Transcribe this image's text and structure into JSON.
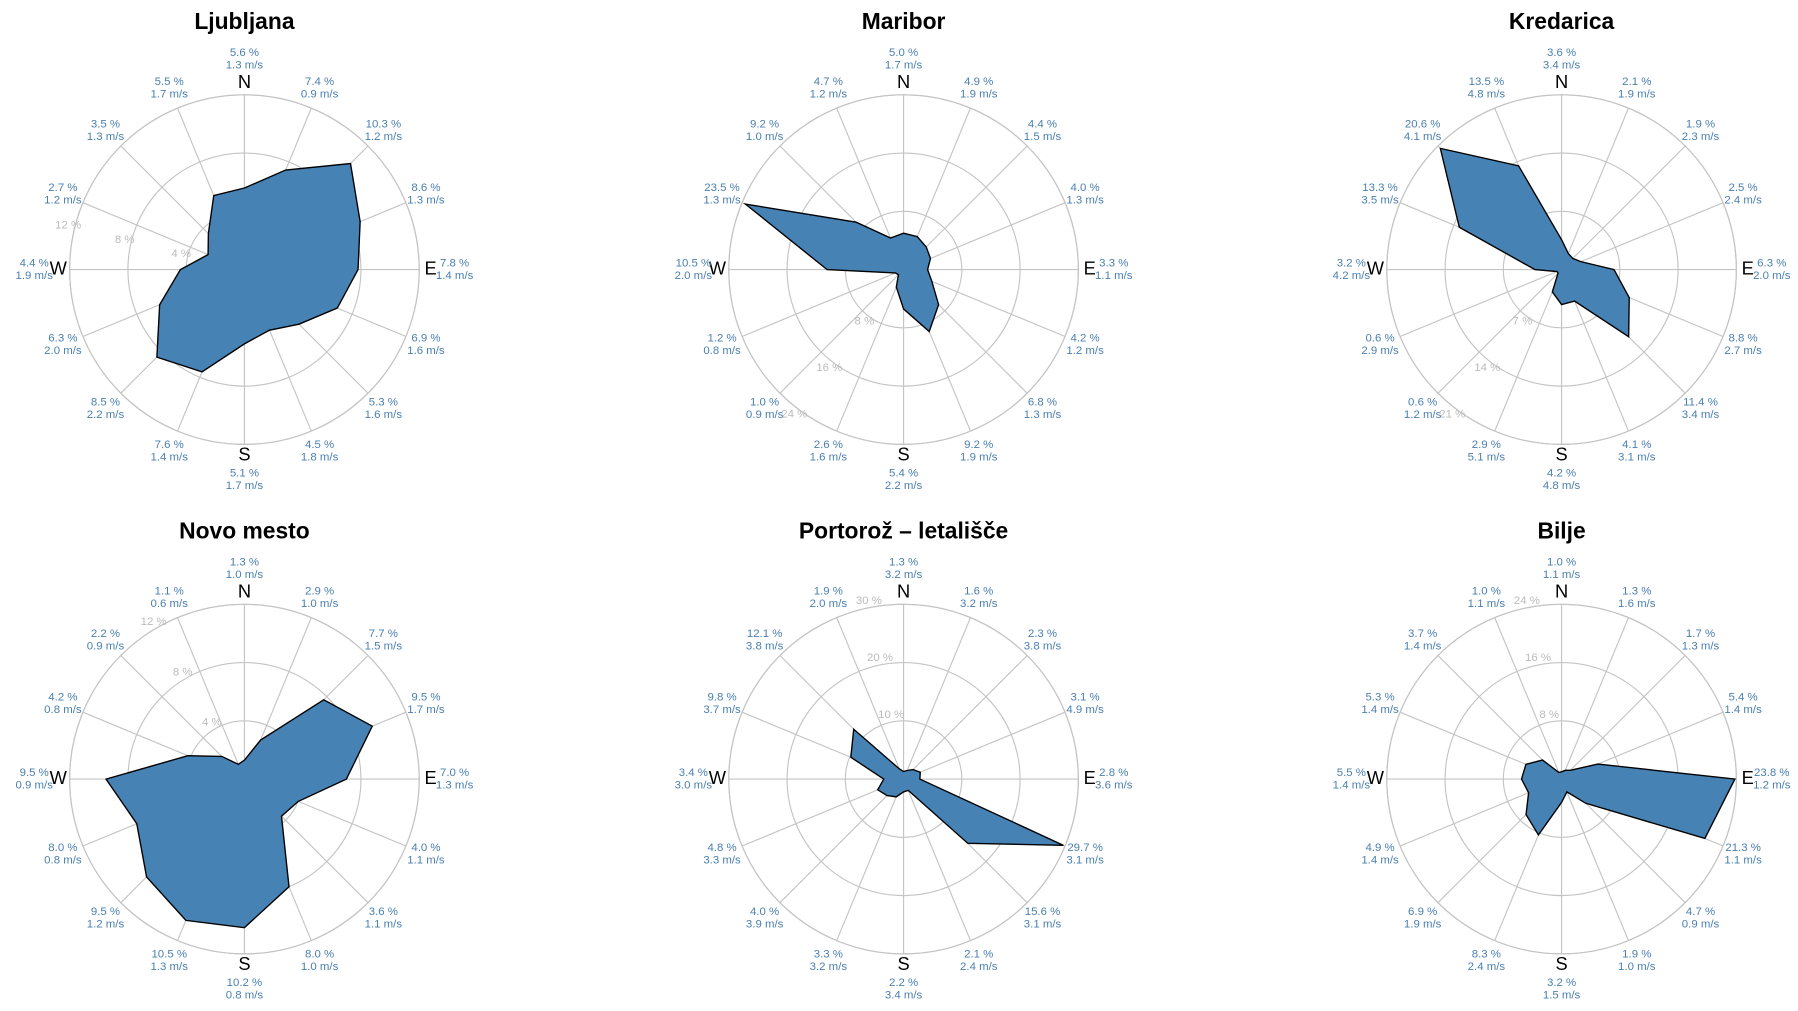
{
  "chart_data": [
    {
      "type": "radar",
      "title": "Ljubljana",
      "categories": [
        "N",
        null,
        null,
        null,
        "E",
        null,
        null,
        null,
        "S",
        null,
        null,
        null,
        "W",
        null,
        null,
        null
      ],
      "values": [
        5.6,
        7.4,
        10.3,
        8.6,
        7.8,
        6.9,
        5.3,
        4.5,
        5.1,
        7.6,
        8.5,
        6.3,
        4.4,
        2.7,
        3.5,
        5.5
      ],
      "value_labels": [
        "5.6 %",
        "7.4 %",
        "10.3 %",
        "8.6 %",
        "7.8 %",
        "6.9 %",
        "5.3 %",
        "4.5 %",
        "5.1 %",
        "7.6 %",
        "8.5 %",
        "6.3 %",
        "4.4 %",
        "2.7 %",
        "3.5 %",
        "5.5 %"
      ],
      "speed_labels": [
        "1.3 m/s",
        "0.9 m/s",
        "1.2 m/s",
        "1.3 m/s",
        "1.4 m/s",
        "1.6 m/s",
        "1.6 m/s",
        "1.8 m/s",
        "1.7 m/s",
        "1.4 m/s",
        "2.2 m/s",
        "2.0 m/s",
        "1.9 m/s",
        "1.2 m/s",
        "1.3 m/s",
        "1.7 m/s"
      ],
      "ylim": [
        0,
        12
      ],
      "yticks": [
        {
          "value": 4,
          "label": "4 %"
        },
        {
          "value": 8,
          "label": "8 %"
        },
        {
          "value": 12,
          "label": "12 %"
        }
      ],
      "color": "#4682b4"
    },
    {
      "type": "radar",
      "title": "Maribor",
      "categories": [
        "N",
        null,
        null,
        null,
        "E",
        null,
        null,
        null,
        "S",
        null,
        null,
        null,
        "W",
        null,
        null,
        null
      ],
      "values": [
        5.0,
        4.9,
        4.4,
        4.0,
        3.3,
        4.2,
        6.8,
        9.2,
        5.4,
        2.6,
        1.0,
        1.2,
        10.5,
        23.5,
        9.2,
        4.7
      ],
      "value_labels": [
        "5.0 %",
        "4.9 %",
        "4.4 %",
        "4.0 %",
        "3.3 %",
        "4.2 %",
        "6.8 %",
        "9.2 %",
        "5.4 %",
        "2.6 %",
        "1.0 %",
        "1.2 %",
        "10.5 %",
        "23.5 %",
        "9.2 %",
        "4.7 %"
      ],
      "speed_labels": [
        "1.7 m/s",
        "1.9 m/s",
        "1.5 m/s",
        "1.3 m/s",
        "1.1 m/s",
        "1.2 m/s",
        "1.3 m/s",
        "1.9 m/s",
        "2.2 m/s",
        "1.6 m/s",
        "0.9 m/s",
        "0.8 m/s",
        "2.0 m/s",
        "1.3 m/s",
        "1.0 m/s",
        "1.2 m/s"
      ],
      "ylim": [
        0,
        24
      ],
      "yticks": [
        {
          "value": 8,
          "label": "8 %"
        },
        {
          "value": 16,
          "label": "16 %"
        },
        {
          "value": 24,
          "label": "24 %"
        }
      ],
      "color": "#4682b4"
    },
    {
      "type": "radar",
      "title": "Kredarica",
      "categories": [
        "N",
        null,
        null,
        null,
        "E",
        null,
        null,
        null,
        "S",
        null,
        null,
        null,
        "W",
        null,
        null,
        null
      ],
      "values": [
        3.6,
        2.1,
        1.9,
        2.5,
        6.3,
        8.8,
        11.4,
        4.1,
        4.2,
        2.9,
        0.6,
        0.6,
        3.2,
        13.3,
        20.6,
        13.5
      ],
      "value_labels": [
        "3.6 %",
        "2.1 %",
        "1.9 %",
        "2.5 %",
        "6.3 %",
        "8.8 %",
        "11.4 %",
        "4.1 %",
        "4.2 %",
        "2.9 %",
        "0.6 %",
        "0.6 %",
        "3.2 %",
        "13.3 %",
        "20.6 %",
        "13.5 %"
      ],
      "speed_labels": [
        "3.4 m/s",
        "1.9 m/s",
        "2.3 m/s",
        "2.4 m/s",
        "2.0 m/s",
        "2.7 m/s",
        "3.4 m/s",
        "3.1 m/s",
        "4.8 m/s",
        "5.1 m/s",
        "1.2 m/s",
        "2.9 m/s",
        "4.2 m/s",
        "3.5 m/s",
        "4.1 m/s",
        "4.8 m/s"
      ],
      "ylim": [
        0,
        21
      ],
      "yticks": [
        {
          "value": 7,
          "label": "7 %"
        },
        {
          "value": 14,
          "label": "14 %"
        },
        {
          "value": 21,
          "label": "21 %"
        }
      ],
      "color": "#4682b4"
    },
    {
      "type": "radar",
      "title": "Novo mesto",
      "categories": [
        "N",
        null,
        null,
        null,
        "E",
        null,
        null,
        null,
        "S",
        null,
        null,
        null,
        "W",
        null,
        null,
        null
      ],
      "values": [
        1.3,
        2.9,
        7.7,
        9.5,
        7.0,
        4.0,
        3.6,
        8.0,
        10.2,
        10.5,
        9.5,
        8.0,
        9.5,
        4.2,
        2.2,
        1.1
      ],
      "value_labels": [
        "1.3 %",
        "2.9 %",
        "7.7 %",
        "9.5 %",
        "7.0 %",
        "4.0 %",
        "3.6 %",
        "8.0 %",
        "10.2 %",
        "10.5 %",
        "9.5 %",
        "8.0 %",
        "9.5 %",
        "4.2 %",
        "2.2 %",
        "1.1 %"
      ],
      "speed_labels": [
        "1.0 m/s",
        "1.0 m/s",
        "1.5 m/s",
        "1.7 m/s",
        "1.3 m/s",
        "1.1 m/s",
        "1.1 m/s",
        "1.0 m/s",
        "0.8 m/s",
        "1.3 m/s",
        "1.2 m/s",
        "0.8 m/s",
        "0.9 m/s",
        "0.8 m/s",
        "0.9 m/s",
        "0.6 m/s"
      ],
      "ylim": [
        0,
        12
      ],
      "yticks": [
        {
          "value": 4,
          "label": "4 %"
        },
        {
          "value": 8,
          "label": "8 %"
        },
        {
          "value": 12,
          "label": "12 %"
        }
      ],
      "color": "#4682b4"
    },
    {
      "type": "radar",
      "title": "Portorož – letališče",
      "categories": [
        "N",
        null,
        null,
        null,
        "E",
        null,
        null,
        null,
        "S",
        null,
        null,
        null,
        "W",
        null,
        null,
        null
      ],
      "values": [
        1.3,
        1.6,
        2.3,
        3.1,
        2.8,
        29.7,
        15.6,
        2.1,
        2.2,
        3.3,
        4.0,
        4.8,
        3.4,
        9.8,
        12.1,
        1.9
      ],
      "value_labels": [
        "1.3 %",
        "1.6 %",
        "2.3 %",
        "3.1 %",
        "2.8 %",
        "29.7 %",
        "15.6 %",
        "2.1 %",
        "2.2 %",
        "3.3 %",
        "4.0 %",
        "4.8 %",
        "3.4 %",
        "9.8 %",
        "12.1 %",
        "1.9 %"
      ],
      "speed_labels": [
        "3.2 m/s",
        "3.2 m/s",
        "3.8 m/s",
        "4.9 m/s",
        "3.6 m/s",
        "3.1 m/s",
        "3.1 m/s",
        "2.4 m/s",
        "3.4 m/s",
        "3.2 m/s",
        "3.9 m/s",
        "3.3 m/s",
        "3.0 m/s",
        "3.7 m/s",
        "3.8 m/s",
        "2.0 m/s"
      ],
      "ylim": [
        0,
        30
      ],
      "yticks": [
        {
          "value": 10,
          "label": "10 %"
        },
        {
          "value": 20,
          "label": "20 %"
        },
        {
          "value": 30,
          "label": "30 %"
        }
      ],
      "color": "#4682b4"
    },
    {
      "type": "radar",
      "title": "Bilje",
      "categories": [
        "N",
        null,
        null,
        null,
        "E",
        null,
        null,
        null,
        "S",
        null,
        null,
        null,
        "W",
        null,
        null,
        null
      ],
      "values": [
        1.0,
        1.3,
        1.7,
        5.4,
        23.8,
        21.3,
        4.7,
        1.9,
        3.2,
        8.3,
        6.9,
        4.9,
        5.5,
        5.3,
        3.7,
        1.0
      ],
      "value_labels": [
        "1.0 %",
        "1.3 %",
        "1.7 %",
        "5.4 %",
        "23.8 %",
        "21.3 %",
        "4.7 %",
        "1.9 %",
        "3.2 %",
        "8.3 %",
        "6.9 %",
        "4.9 %",
        "5.5 %",
        "5.3 %",
        "3.7 %",
        "1.0 %"
      ],
      "speed_labels": [
        "1.1 m/s",
        "1.6 m/s",
        "1.3 m/s",
        "1.4 m/s",
        "1.2 m/s",
        "1.1 m/s",
        "0.9 m/s",
        "1.0 m/s",
        "1.5 m/s",
        "2.4 m/s",
        "1.9 m/s",
        "1.4 m/s",
        "1.4 m/s",
        "1.4 m/s",
        "1.4 m/s",
        "1.1 m/s"
      ],
      "ylim": [
        0,
        24
      ],
      "yticks": [
        {
          "value": 8,
          "label": "8 %"
        },
        {
          "value": 16,
          "label": "16 %"
        },
        {
          "value": 24,
          "label": "24 %"
        }
      ],
      "color": "#4682b4"
    }
  ]
}
